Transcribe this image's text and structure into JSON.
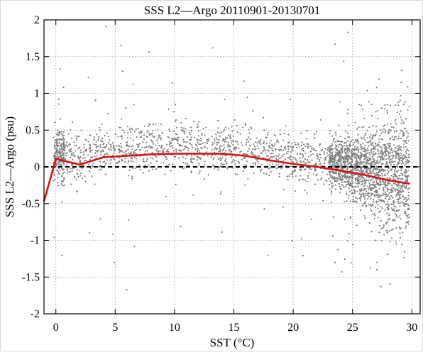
{
  "chart_data": {
    "type": "scatter",
    "title": "SSS L2—Argo 20110901-20130701",
    "xlabel": "SST (°C)",
    "ylabel": "SSS L2—Argo (psu)",
    "xlim": [
      -1,
      30.7
    ],
    "ylim": [
      -2,
      2
    ],
    "x_ticks": [
      0,
      5,
      10,
      15,
      20,
      25,
      30
    ],
    "y_ticks": [
      -2,
      -1.5,
      -1,
      -0.5,
      0,
      0.5,
      1,
      1.5,
      2
    ],
    "x_tick_labels": [
      "0",
      "5",
      "10",
      "15",
      "20",
      "25",
      "30"
    ],
    "y_tick_labels": [
      "-2",
      "-1.5",
      "-1",
      "-0.5",
      "0",
      "0.5",
      "1",
      "1.5",
      "2"
    ],
    "grid": true,
    "reference_line": {
      "y": 0,
      "style": "dashed",
      "color": "#000000"
    },
    "series": [
      {
        "type": "line",
        "color": "#dd1111",
        "x": [
          -1,
          0,
          2,
          4,
          6,
          8,
          10,
          12,
          14,
          16,
          18,
          20,
          22,
          24,
          26,
          28,
          29.8
        ],
        "y": [
          -0.47,
          0.11,
          0.03,
          0.13,
          0.15,
          0.17,
          0.18,
          0.18,
          0.18,
          0.15,
          0.09,
          0.04,
          0.0,
          -0.05,
          -0.11,
          -0.18,
          -0.23
        ]
      },
      {
        "type": "scatter",
        "color": "#7f7f7f",
        "x_range": [
          -0.8,
          29.8
        ],
        "y_range": [
          -2,
          2
        ]
      }
    ]
  }
}
